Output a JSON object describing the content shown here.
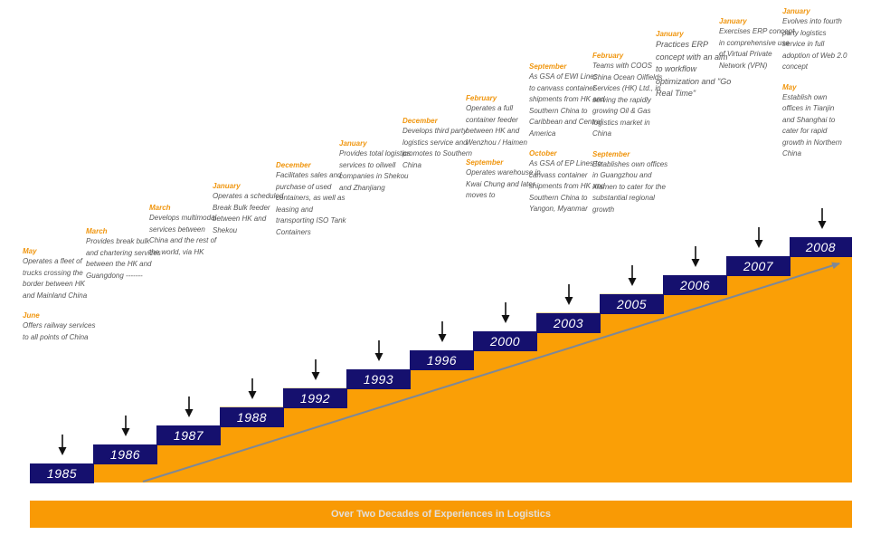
{
  "colors": {
    "orange": "#fa9f06",
    "navy": "#15106e",
    "month_text": "#f0960f",
    "body_text": "#555555",
    "trend_line": "#7d8898",
    "banner_text": "#e3dfda"
  },
  "icons": {
    "step_marker": "down-arrow-icon"
  },
  "banner_text": "Over Two Decades of Experiences in Logistics",
  "steps": [
    {
      "year": "1985",
      "events": [
        {
          "month": "May",
          "text": "Operates a fleet of trucks crossing the border between HK and Mainland China"
        },
        {
          "month": "June",
          "text": "Offers railway services to all points of China"
        }
      ]
    },
    {
      "year": "1986",
      "events": [
        {
          "month": "March",
          "text": "Provides break bulk and chartering services between the HK and Guangdong -------"
        }
      ]
    },
    {
      "year": "1987",
      "events": [
        {
          "month": "March",
          "text": "Develops multimodal services between China and the rest of the world, via HK"
        }
      ]
    },
    {
      "year": "1988",
      "events": [
        {
          "month": "January",
          "text": "Operates a scheduled Break Bulk feeder between HK and Shekou"
        }
      ]
    },
    {
      "year": "1992",
      "events": [
        {
          "month": "December",
          "text": "Facilitates sales and purchase of used containers, as well as leasing and transporting ISO Tank Containers"
        }
      ]
    },
    {
      "year": "1993",
      "events": [
        {
          "month": "January",
          "text": "Provides total logistics services to oilwell companies in Shekou and Zhanjiang"
        }
      ]
    },
    {
      "year": "1996",
      "events": [
        {
          "month": "December",
          "text": "Develops third party logistics service and promotes to Southern China"
        }
      ]
    },
    {
      "year": "2000",
      "events": [
        {
          "month": "February",
          "text": "Operates a full container feeder between HK and Wenzhou / Haimen"
        },
        {
          "month": "September",
          "text": "Operates warehouse in Kwai Chung and later moves to"
        }
      ]
    },
    {
      "year": "2003",
      "events": [
        {
          "month": "September",
          "text": "As GSA of EWI Lines to canvass container shipments from HK and Southern China to Caribbean and Central America"
        },
        {
          "month": "October",
          "text": "As GSA of EP Lines to canvass container shipments from HK and Southern China to Yangon, Myanmar"
        }
      ]
    },
    {
      "year": "2005",
      "events": [
        {
          "month": "February",
          "text": "Teams with COOS China Ocean Oilfields Services (HK) Ltd., in serving the rapidly growing Oil & Gas logistics market in China"
        },
        {
          "month": "September",
          "text": "Establishes own offices in Guangzhou and Xiamen to cater for the substantial regional growth"
        }
      ]
    },
    {
      "year": "2006",
      "events": [
        {
          "month": "January",
          "text": "Practices ERP concept with an aim to workflow optimization and \"Go Real Time\""
        }
      ]
    },
    {
      "year": "2007",
      "events": [
        {
          "month": "January",
          "text": "Exercises ERP concept in comprehensive use of Virtual Private Network (VPN)"
        }
      ]
    },
    {
      "year": "2008",
      "events": [
        {
          "month": "January",
          "text": "Evolves into fourth party logistics service in full adoption of Web 2.0 concept"
        },
        {
          "month": "May",
          "text": "Establish own offices in Tianjin and Shanghai to cater for rapid growth in Northern China"
        }
      ]
    }
  ]
}
